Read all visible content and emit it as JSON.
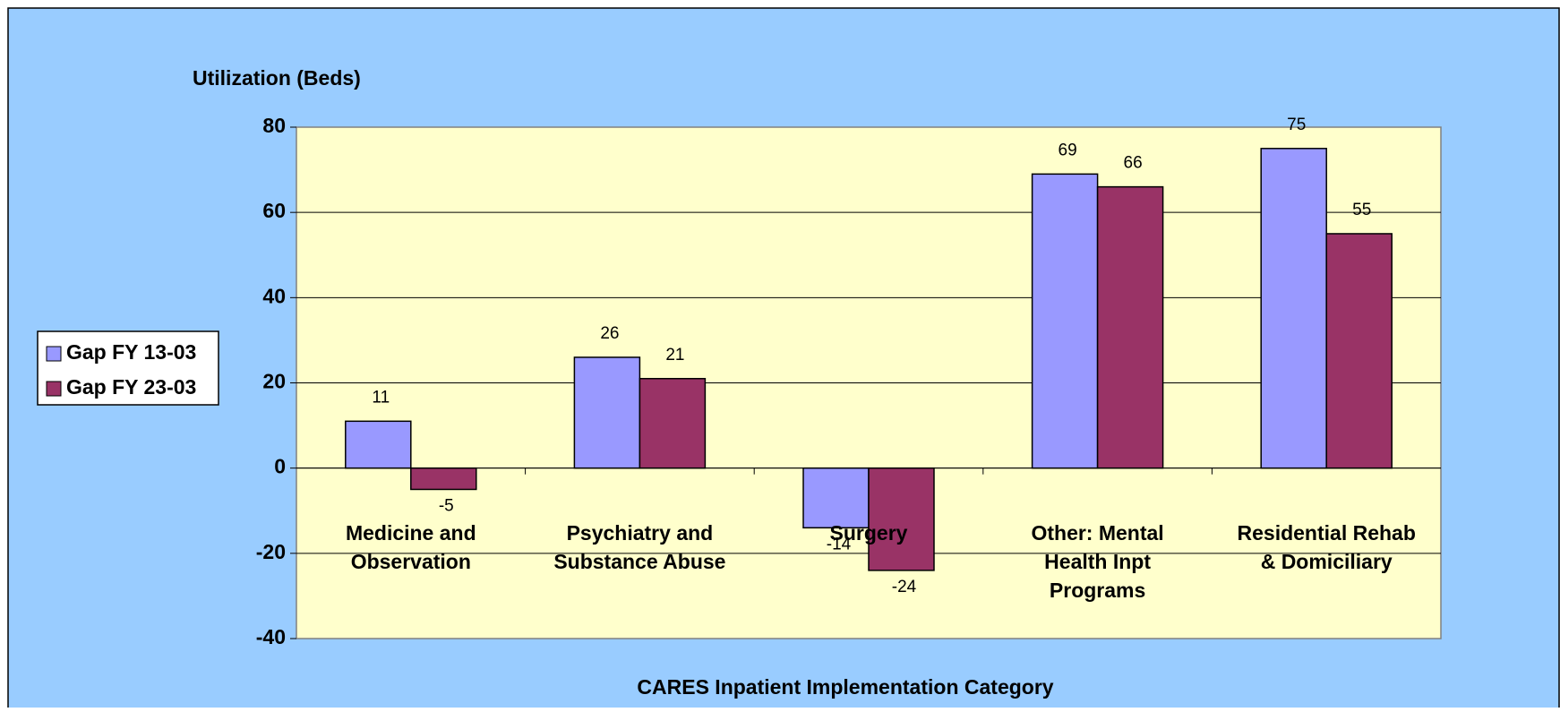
{
  "chart_data": {
    "type": "bar",
    "y_axis_title": "Utilization (Beds)",
    "x_axis_title": "CARES Inpatient Implementation Category",
    "categories": [
      "Medicine and\nObservation",
      "Psychiatry and\nSubstance Abuse",
      "Surgery",
      "Other: Mental\nHealth Inpt\nPrograms",
      "Residential Rehab\n& Domiciliary"
    ],
    "series": [
      {
        "name": "Gap FY 13-03",
        "color": "#9999ff",
        "values": [
          11,
          26,
          -14,
          69,
          75
        ]
      },
      {
        "name": "Gap FY 23-03",
        "color": "#993366",
        "values": [
          -5,
          21,
          -24,
          66,
          55
        ]
      }
    ],
    "ylim": [
      -40,
      80
    ],
    "yticks": [
      -40,
      -20,
      0,
      20,
      40,
      60,
      80
    ],
    "grid": true,
    "legend": "left"
  }
}
